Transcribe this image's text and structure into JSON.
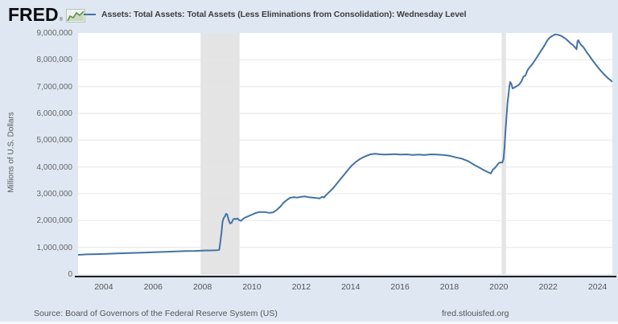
{
  "header": {
    "logo_text": "FRED",
    "logo_registered": "®",
    "legend_label": "Assets: Total Assets: Total Assets (Less Eliminations from Consolidation): Wednesday Level"
  },
  "y_axis": {
    "title": "Millions of U.S. Dollars"
  },
  "footer": {
    "source": "Source: Board of Governors of the Federal Reserve System (US)",
    "site": "fred.stlouisfed.org"
  },
  "colors": {
    "line": "#4472a7",
    "background": "#dfe8f2",
    "plot_background": "#ffffff",
    "gridline": "#e6e6e6",
    "recession_band": "#e4e4e4",
    "axis_line": "#1f1f1f",
    "logo_icon_green": "#5d8a46",
    "logo_icon_fill": "#c7d8c2",
    "tick_label": "#666666"
  },
  "chart_data": {
    "type": "line",
    "title": "Assets: Total Assets: Total Assets (Less Eliminations from Consolidation): Wednesday Level",
    "xlabel": "",
    "ylabel": "Millions of U.S. Dollars",
    "xlim": [
      2002.96,
      2024.6
    ],
    "ylim": [
      0,
      9000000
    ],
    "x_ticks": [
      2004,
      2006,
      2008,
      2010,
      2012,
      2014,
      2016,
      2018,
      2020,
      2022,
      2024
    ],
    "y_ticks": [
      0,
      1000000,
      2000000,
      3000000,
      4000000,
      5000000,
      6000000,
      7000000,
      8000000,
      9000000
    ],
    "grid": "horizontal",
    "legend_position": "top",
    "recessions": [
      {
        "start": 2007.92,
        "end": 2009.5
      },
      {
        "start": 2020.12,
        "end": 2020.29
      }
    ],
    "series": [
      {
        "name": "Assets: Total Assets: Total Assets (Less Eliminations from Consolidation): Wednesday Level",
        "units": "Millions of U.S. Dollars",
        "points": [
          [
            2002.96,
            720000
          ],
          [
            2003.3,
            737000
          ],
          [
            2003.7,
            748000
          ],
          [
            2004.1,
            760000
          ],
          [
            2004.5,
            772000
          ],
          [
            2004.9,
            783000
          ],
          [
            2005.3,
            795000
          ],
          [
            2005.7,
            808000
          ],
          [
            2006.1,
            822000
          ],
          [
            2006.5,
            833000
          ],
          [
            2006.9,
            850000
          ],
          [
            2007.3,
            860000
          ],
          [
            2007.7,
            868000
          ],
          [
            2008.0,
            878000
          ],
          [
            2008.35,
            884000
          ],
          [
            2008.6,
            895000
          ],
          [
            2008.68,
            910000
          ],
          [
            2008.73,
            1250000
          ],
          [
            2008.77,
            1560000
          ],
          [
            2008.81,
            1940000
          ],
          [
            2008.85,
            2080000
          ],
          [
            2008.91,
            2160000
          ],
          [
            2008.95,
            2250000
          ],
          [
            2009.0,
            2230000
          ],
          [
            2009.06,
            2020000
          ],
          [
            2009.12,
            1890000
          ],
          [
            2009.18,
            1920000
          ],
          [
            2009.24,
            2040000
          ],
          [
            2009.3,
            2070000
          ],
          [
            2009.36,
            2050000
          ],
          [
            2009.42,
            2080000
          ],
          [
            2009.48,
            2020000
          ],
          [
            2009.56,
            1990000
          ],
          [
            2009.64,
            2060000
          ],
          [
            2009.72,
            2110000
          ],
          [
            2009.85,
            2160000
          ],
          [
            2010.0,
            2220000
          ],
          [
            2010.15,
            2280000
          ],
          [
            2010.3,
            2320000
          ],
          [
            2010.5,
            2320000
          ],
          [
            2010.7,
            2290000
          ],
          [
            2010.85,
            2300000
          ],
          [
            2011.0,
            2390000
          ],
          [
            2011.15,
            2520000
          ],
          [
            2011.3,
            2680000
          ],
          [
            2011.45,
            2790000
          ],
          [
            2011.55,
            2850000
          ],
          [
            2011.7,
            2870000
          ],
          [
            2011.85,
            2860000
          ],
          [
            2012.0,
            2890000
          ],
          [
            2012.15,
            2900000
          ],
          [
            2012.3,
            2870000
          ],
          [
            2012.45,
            2860000
          ],
          [
            2012.6,
            2840000
          ],
          [
            2012.75,
            2830000
          ],
          [
            2012.85,
            2890000
          ],
          [
            2012.92,
            2860000
          ],
          [
            2013.0,
            2950000
          ],
          [
            2013.15,
            3080000
          ],
          [
            2013.3,
            3220000
          ],
          [
            2013.45,
            3390000
          ],
          [
            2013.6,
            3560000
          ],
          [
            2013.75,
            3730000
          ],
          [
            2013.9,
            3900000
          ],
          [
            2014.05,
            4060000
          ],
          [
            2014.2,
            4180000
          ],
          [
            2014.35,
            4280000
          ],
          [
            2014.5,
            4360000
          ],
          [
            2014.65,
            4420000
          ],
          [
            2014.8,
            4470000
          ],
          [
            2015.0,
            4490000
          ],
          [
            2015.2,
            4470000
          ],
          [
            2015.4,
            4460000
          ],
          [
            2015.6,
            4470000
          ],
          [
            2015.8,
            4480000
          ],
          [
            2016.0,
            4460000
          ],
          [
            2016.25,
            4470000
          ],
          [
            2016.5,
            4450000
          ],
          [
            2016.75,
            4460000
          ],
          [
            2017.0,
            4450000
          ],
          [
            2017.25,
            4470000
          ],
          [
            2017.5,
            4460000
          ],
          [
            2017.75,
            4450000
          ],
          [
            2018.0,
            4420000
          ],
          [
            2018.25,
            4360000
          ],
          [
            2018.5,
            4310000
          ],
          [
            2018.75,
            4220000
          ],
          [
            2019.0,
            4080000
          ],
          [
            2019.2,
            3980000
          ],
          [
            2019.4,
            3880000
          ],
          [
            2019.55,
            3810000
          ],
          [
            2019.68,
            3760000
          ],
          [
            2019.76,
            3900000
          ],
          [
            2019.84,
            3960000
          ],
          [
            2019.92,
            4050000
          ],
          [
            2020.0,
            4150000
          ],
          [
            2020.08,
            4170000
          ],
          [
            2020.14,
            4160000
          ],
          [
            2020.19,
            4290000
          ],
          [
            2020.23,
            4700000
          ],
          [
            2020.27,
            5300000
          ],
          [
            2020.31,
            5860000
          ],
          [
            2020.35,
            6370000
          ],
          [
            2020.39,
            6660000
          ],
          [
            2020.43,
            7010000
          ],
          [
            2020.46,
            7170000
          ],
          [
            2020.51,
            7100000
          ],
          [
            2020.56,
            6930000
          ],
          [
            2020.63,
            6960000
          ],
          [
            2020.72,
            7010000
          ],
          [
            2020.82,
            7070000
          ],
          [
            2020.92,
            7200000
          ],
          [
            2021.0,
            7370000
          ],
          [
            2021.08,
            7410000
          ],
          [
            2021.16,
            7600000
          ],
          [
            2021.25,
            7720000
          ],
          [
            2021.35,
            7830000
          ],
          [
            2021.45,
            7960000
          ],
          [
            2021.55,
            8100000
          ],
          [
            2021.65,
            8250000
          ],
          [
            2021.75,
            8390000
          ],
          [
            2021.85,
            8530000
          ],
          [
            2021.95,
            8700000
          ],
          [
            2022.05,
            8820000
          ],
          [
            2022.15,
            8880000
          ],
          [
            2022.25,
            8930000
          ],
          [
            2022.3,
            8950000
          ],
          [
            2022.4,
            8930000
          ],
          [
            2022.5,
            8900000
          ],
          [
            2022.6,
            8850000
          ],
          [
            2022.7,
            8790000
          ],
          [
            2022.8,
            8710000
          ],
          [
            2022.9,
            8620000
          ],
          [
            2023.0,
            8550000
          ],
          [
            2023.08,
            8470000
          ],
          [
            2023.15,
            8390000
          ],
          [
            2023.19,
            8690000
          ],
          [
            2023.22,
            8730000
          ],
          [
            2023.27,
            8640000
          ],
          [
            2023.33,
            8560000
          ],
          [
            2023.4,
            8500000
          ],
          [
            2023.48,
            8400000
          ],
          [
            2023.56,
            8280000
          ],
          [
            2023.65,
            8170000
          ],
          [
            2023.75,
            8040000
          ],
          [
            2023.85,
            7910000
          ],
          [
            2023.95,
            7790000
          ],
          [
            2024.05,
            7680000
          ],
          [
            2024.15,
            7570000
          ],
          [
            2024.25,
            7470000
          ],
          [
            2024.35,
            7380000
          ],
          [
            2024.45,
            7290000
          ],
          [
            2024.55,
            7220000
          ],
          [
            2024.6,
            7180000
          ]
        ]
      }
    ]
  }
}
